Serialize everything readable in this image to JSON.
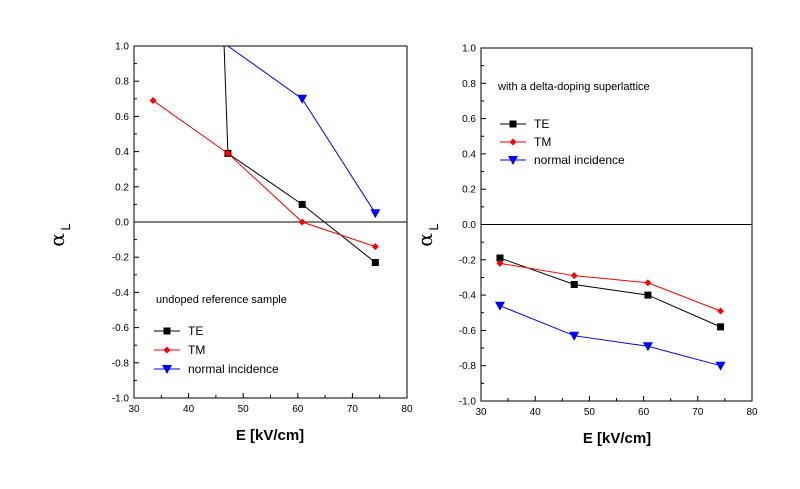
{
  "chart_data": [
    {
      "type": "line",
      "title": "",
      "xlabel": "E [kV/cm]",
      "ylabel": "α",
      "ylabel_subscript": "L",
      "xlim": [
        30,
        80
      ],
      "ylim": [
        -1.0,
        1.0
      ],
      "xticks": [
        "30",
        "40",
        "50",
        "60",
        "70",
        "80"
      ],
      "yticks": [
        "-1.0",
        "-0.8",
        "-0.6",
        "-0.4",
        "-0.2",
        "0.0",
        "0.2",
        "0.4",
        "0.6",
        "0.8",
        "1.0"
      ],
      "annotation": "undoped reference sample",
      "legend_position": "bottom-left",
      "series": [
        {
          "name": "TE",
          "color": "#000000",
          "marker": "square",
          "x": [
            46.5,
            47.2,
            60.8,
            74.2
          ],
          "y": [
            1.0,
            0.39,
            0.1,
            -0.23
          ]
        },
        {
          "name": "TM",
          "color": "#ff0000",
          "marker": "diamond",
          "x": [
            33.5,
            47.2,
            60.8,
            74.2
          ],
          "y": [
            0.69,
            0.39,
            0.0,
            -0.14
          ]
        },
        {
          "name": "normal incidence",
          "color": "#0000ff",
          "marker": "triangle-down",
          "x": [
            47.2,
            60.8,
            74.2
          ],
          "y": [
            1.0,
            0.7,
            0.05
          ]
        }
      ]
    },
    {
      "type": "line",
      "title": "",
      "xlabel": "E [kV/cm]",
      "ylabel": "α",
      "ylabel_subscript": "L",
      "xlim": [
        30,
        80
      ],
      "ylim": [
        -1.0,
        1.0
      ],
      "xticks": [
        "30",
        "40",
        "50",
        "60",
        "70",
        "80"
      ],
      "yticks": [
        "-1.0",
        "-0.8",
        "-0.6",
        "-0.4",
        "-0.2",
        "0.0",
        "0.2",
        "0.4",
        "0.6",
        "0.8",
        "1.0"
      ],
      "annotation": "with a delta-doping superlattice",
      "legend_position": "upper-left",
      "series": [
        {
          "name": "TE",
          "color": "#000000",
          "marker": "square",
          "x": [
            33.5,
            47.2,
            60.8,
            74.2
          ],
          "y": [
            -0.19,
            -0.34,
            -0.4,
            -0.58
          ]
        },
        {
          "name": "TM",
          "color": "#ff0000",
          "marker": "diamond",
          "x": [
            33.5,
            47.2,
            60.8,
            74.2
          ],
          "y": [
            -0.22,
            -0.29,
            -0.33,
            -0.49
          ]
        },
        {
          "name": "normal incidence",
          "color": "#0000ff",
          "marker": "triangle-down",
          "x": [
            33.5,
            47.2,
            60.8,
            74.2
          ],
          "y": [
            -0.46,
            -0.63,
            -0.69,
            -0.8
          ]
        }
      ]
    }
  ]
}
